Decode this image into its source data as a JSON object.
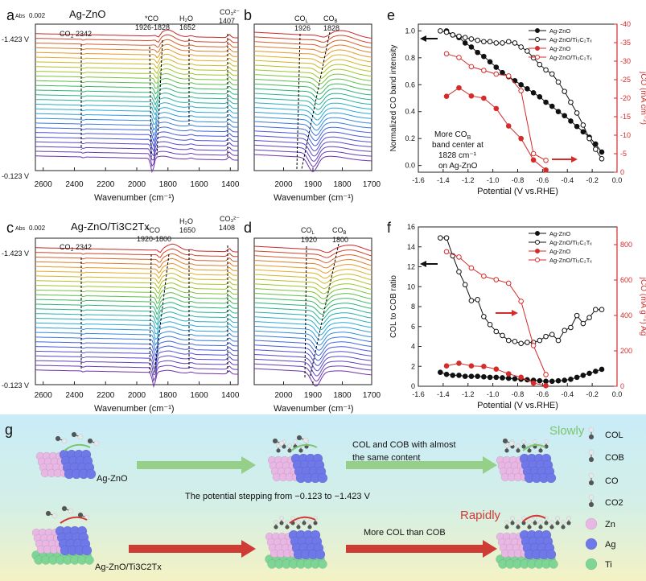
{
  "panels": {
    "a": {
      "letter": "a",
      "title": "Ag-ZnO",
      "abs": "0.002",
      "co2": "2342",
      "co_peak": "*CO",
      "co_range": "1926-1828",
      "h2o": "1652",
      "co3": "1407",
      "v_top": "-1.423 V",
      "v_bot": "-0.123 V",
      "xlabel": "Wavenumber (cm⁻¹)",
      "ticks": [
        "2600",
        "2400",
        "2200",
        "2000",
        "1800",
        "1600",
        "1400"
      ]
    },
    "b": {
      "letter": "b",
      "col": "1926",
      "cob": "1828",
      "xlabel": "Wavenumber (cm⁻¹)",
      "ticks": [
        "2000",
        "1900",
        "1800",
        "1700"
      ]
    },
    "c": {
      "letter": "c",
      "title": "Ag-ZnO/Ti3C2Tx",
      "abs": "0.002",
      "co2": "2342",
      "co_peak": "*CO",
      "co_range": "1920-1800",
      "h2o": "1650",
      "co3": "1408",
      "v_top": "-1.423 V",
      "v_bot": "-0.123 V",
      "xlabel": "Wavenumber (cm⁻¹)",
      "ticks": [
        "2600",
        "2400",
        "2200",
        "2000",
        "1800",
        "1600",
        "1400"
      ]
    },
    "d": {
      "letter": "d",
      "col": "1920",
      "cob": "1800",
      "xlabel": "Wavenumber (cm⁻¹)",
      "ticks": [
        "2000",
        "1900",
        "1800",
        "1700"
      ]
    },
    "e": {
      "letter": "e",
      "annot_1": "More CO",
      "annot_2": "band center at",
      "annot_3": "1828 cm⁻¹",
      "annot_4": "on Ag-ZnO"
    },
    "f": {
      "letter": "f"
    },
    "g": {
      "letter": "g",
      "label_a": "Ag-ZnO",
      "label_b": "Ag-ZnO/Ti3C2Tx",
      "slowly": "Slowly",
      "rapidly": "Rapidly",
      "text1": "COL and COB with almost",
      "text2": "the same content",
      "text3": "The potential stepping from −0.123 to −1.423 V",
      "text4": "More COL than COB",
      "legend": [
        "COL",
        "COB",
        "CO",
        "CO2",
        "Zn",
        "Ag",
        "Ti"
      ]
    }
  },
  "colors": {
    "black": "#111111",
    "red": "#d42b2b",
    "zn": "#e8b7e4",
    "ag": "#6f78e8",
    "ti": "#7fd596",
    "arrow_green": "#7cc66e",
    "arrow_red": "#cf3b35"
  },
  "chart_data": [
    {
      "type": "line",
      "id": "e",
      "xlabel": "Potential (V vs.RHE)",
      "ylabel": "Normalized CO band intensity",
      "y2label": "jCO (mA cm⁻²)",
      "xlim": [
        -1.6,
        0.0
      ],
      "ylim": [
        -0.05,
        1.05
      ],
      "y2lim": [
        0,
        -40
      ],
      "xticks": [
        -1.6,
        -1.4,
        -1.2,
        -1.0,
        -0.8,
        -0.6,
        -0.4,
        -0.2,
        0.0
      ],
      "yticks": [
        0.0,
        0.2,
        0.4,
        0.6,
        0.8,
        1.0
      ],
      "y2ticks": [
        0,
        -5,
        -10,
        -15,
        -20,
        -25,
        -30,
        -35,
        -40
      ],
      "series": [
        {
          "name": "Ag-ZnO",
          "axis": "left",
          "marker": "filled",
          "color": "black",
          "x": [
            -1.373,
            -1.323,
            -1.273,
            -1.223,
            -1.173,
            -1.123,
            -1.073,
            -1.023,
            -0.973,
            -0.923,
            -0.873,
            -0.823,
            -0.773,
            -0.723,
            -0.673,
            -0.623,
            -0.573,
            -0.523,
            -0.473,
            -0.423,
            -0.373,
            -0.323,
            -0.273,
            -0.223,
            -0.173,
            -0.123
          ],
          "y": [
            1.0,
            0.97,
            0.95,
            0.91,
            0.88,
            0.84,
            0.81,
            0.77,
            0.73,
            0.69,
            0.66,
            0.63,
            0.6,
            0.57,
            0.54,
            0.51,
            0.47,
            0.44,
            0.4,
            0.37,
            0.33,
            0.29,
            0.25,
            0.21,
            0.16,
            0.1
          ]
        },
        {
          "name": "Ag-ZnO/Ti₃C₂Tₓ",
          "axis": "left",
          "marker": "open",
          "color": "black",
          "x": [
            -1.423,
            -1.373,
            -1.323,
            -1.273,
            -1.223,
            -1.173,
            -1.123,
            -1.073,
            -1.023,
            -0.973,
            -0.923,
            -0.873,
            -0.823,
            -0.773,
            -0.723,
            -0.673,
            -0.623,
            -0.573,
            -0.523,
            -0.473,
            -0.423,
            -0.373,
            -0.323,
            -0.273,
            -0.223,
            -0.173,
            -0.123
          ],
          "y": [
            1.0,
            0.99,
            0.97,
            0.96,
            0.95,
            0.94,
            0.93,
            0.92,
            0.92,
            0.91,
            0.91,
            0.92,
            0.91,
            0.88,
            0.85,
            0.8,
            0.75,
            0.71,
            0.68,
            0.62,
            0.55,
            0.47,
            0.39,
            0.3,
            0.2,
            0.12,
            0.05
          ]
        },
        {
          "name": "Ag-ZnO",
          "axis": "right",
          "marker": "filled",
          "color": "red",
          "x": [
            -1.373,
            -1.273,
            -1.173,
            -1.073,
            -0.973,
            -0.873,
            -0.773,
            -0.673,
            -0.573
          ],
          "y": [
            -20.5,
            -22.8,
            -20.6,
            -20.0,
            -17.2,
            -12.5,
            -9.1,
            -3.3,
            -0.6
          ]
        },
        {
          "name": "Ag-ZnO/Ti₃C₂Tₓ",
          "axis": "right",
          "marker": "open",
          "color": "red",
          "x": [
            -1.373,
            -1.273,
            -1.173,
            -1.073,
            -0.973,
            -0.873,
            -0.773,
            -0.673,
            -0.573
          ],
          "y": [
            -32.0,
            -31.0,
            -28.5,
            -27.5,
            -26.5,
            -26.0,
            -22.0,
            -5.0,
            -3.2
          ]
        }
      ]
    },
    {
      "type": "line",
      "id": "f",
      "xlabel": "Potential (V vs.RHE)",
      "ylabel": "COL to COB ratio",
      "y2label": "jCO (mA g⁻¹) Ag",
      "xlim": [
        -1.6,
        0.0
      ],
      "ylim": [
        0,
        16
      ],
      "y2lim": [
        0,
        900
      ],
      "xticks": [
        -1.6,
        -1.4,
        -1.2,
        -1.0,
        -0.8,
        -0.6,
        -0.4,
        -0.2,
        0.0
      ],
      "yticks": [
        0,
        2,
        4,
        6,
        8,
        10,
        12,
        14,
        16
      ],
      "y2ticks": [
        0,
        200,
        400,
        600,
        800
      ],
      "series": [
        {
          "name": "Ag-ZnO",
          "axis": "left",
          "marker": "filled",
          "color": "black",
          "x": [
            -1.423,
            -1.373,
            -1.323,
            -1.273,
            -1.223,
            -1.173,
            -1.123,
            -1.073,
            -1.023,
            -0.973,
            -0.923,
            -0.873,
            -0.823,
            -0.773,
            -0.723,
            -0.673,
            -0.623,
            -0.573,
            -0.523,
            -0.473,
            -0.423,
            -0.373,
            -0.323,
            -0.273,
            -0.223,
            -0.173,
            -0.123
          ],
          "y": [
            1.4,
            1.2,
            1.1,
            1.1,
            1.0,
            1.0,
            1.0,
            0.95,
            0.9,
            0.9,
            0.85,
            0.8,
            0.75,
            0.7,
            0.65,
            0.6,
            0.55,
            0.5,
            0.5,
            0.55,
            0.6,
            0.7,
            0.9,
            1.1,
            1.3,
            1.5,
            1.7
          ]
        },
        {
          "name": "Ag-ZnO/Ti₃C₂Tₓ",
          "axis": "left",
          "marker": "open",
          "color": "black",
          "x": [
            -1.423,
            -1.373,
            -1.323,
            -1.273,
            -1.223,
            -1.173,
            -1.123,
            -1.073,
            -1.023,
            -0.973,
            -0.923,
            -0.873,
            -0.823,
            -0.773,
            -0.723,
            -0.673,
            -0.623,
            -0.573,
            -0.523,
            -0.473,
            -0.423,
            -0.373,
            -0.323,
            -0.273,
            -0.223,
            -0.173,
            -0.123
          ],
          "y": [
            14.9,
            14.9,
            13.1,
            11.5,
            10.2,
            8.6,
            8.7,
            7.0,
            6.2,
            5.5,
            5.1,
            4.6,
            4.5,
            4.3,
            4.4,
            4.4,
            4.6,
            5.0,
            5.2,
            4.6,
            5.6,
            5.9,
            7.1,
            6.3,
            6.9,
            7.7,
            7.7
          ]
        },
        {
          "name": "Ag-ZnO",
          "axis": "right",
          "marker": "filled",
          "color": "red",
          "x": [
            -1.373,
            -1.273,
            -1.173,
            -1.073,
            -0.973,
            -0.873,
            -0.773,
            -0.673,
            -0.573
          ],
          "y": [
            115,
            130,
            115,
            112,
            97,
            70,
            51,
            18,
            3
          ]
        },
        {
          "name": "Ag-ZnO/Ti₃C₂Tₓ",
          "axis": "right",
          "marker": "open",
          "color": "red",
          "x": [
            -1.373,
            -1.273,
            -1.173,
            -1.073,
            -0.973,
            -0.873,
            -0.773,
            -0.673,
            -0.573
          ],
          "y": [
            760,
            730,
            668,
            622,
            602,
            582,
            480,
            230,
            66
          ]
        }
      ]
    }
  ]
}
